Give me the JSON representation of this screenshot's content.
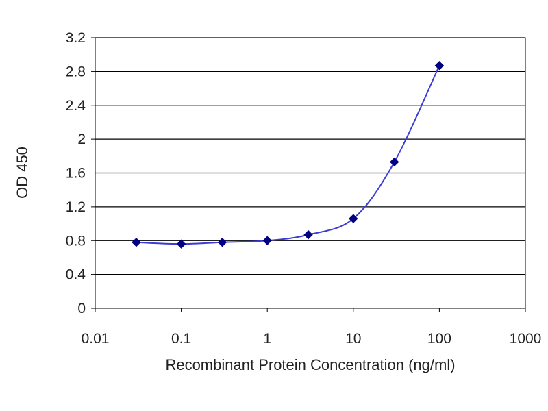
{
  "chart_data": {
    "type": "scatter",
    "title": "",
    "xlabel": "Recombinant Protein Concentration (ng/ml)",
    "ylabel": "OD 450",
    "x_scale": "log",
    "xlim": [
      0.01,
      1000
    ],
    "ylim": [
      0,
      3.2
    ],
    "x_ticks": [
      "0.01",
      "0.1",
      "1",
      "10",
      "100",
      "1000"
    ],
    "y_ticks": [
      "0",
      "0.4",
      "0.8",
      "1.2",
      "1.6",
      "2",
      "2.4",
      "2.8",
      "3.2"
    ],
    "grid": "horizontal",
    "legend": "none",
    "series": [
      {
        "x": [
          0.03,
          0.1,
          0.3,
          1,
          3,
          10,
          30,
          100
        ],
        "y": [
          0.78,
          0.76,
          0.78,
          0.8,
          0.87,
          1.06,
          1.73,
          2.87
        ],
        "color": "#000080",
        "marker": "diamond",
        "line": "smooth"
      }
    ]
  }
}
